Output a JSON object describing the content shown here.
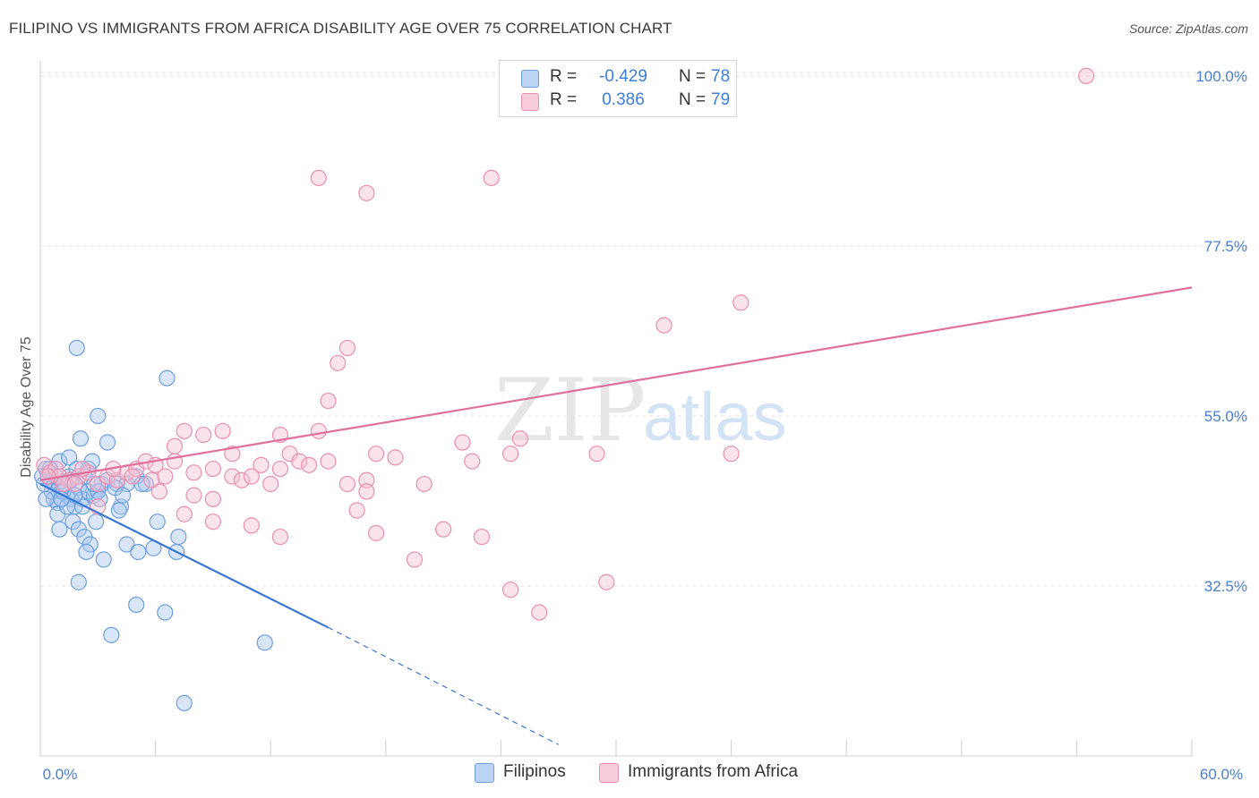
{
  "chart_data": {
    "type": "scatter",
    "title": "FILIPINO VS IMMIGRANTS FROM AFRICA DISABILITY AGE OVER 75 CORRELATION CHART",
    "source": "Source: ZipAtlas.com",
    "ylabel": "Disability Age Over 75",
    "xlabel": "",
    "xlim": [
      0,
      60
    ],
    "ylim": [
      10,
      102
    ],
    "x_tick_labels": [
      "0.0%",
      "60.0%"
    ],
    "y_ticks": [
      32.5,
      55.0,
      77.5,
      100.0
    ],
    "y_tick_labels": [
      "32.5%",
      "55.0%",
      "77.5%",
      "100.0%"
    ],
    "watermark": {
      "zip": "ZIP",
      "atlas": "atlas"
    },
    "legend_stats": [
      {
        "r_label": "R =",
        "r_value": "-0.429",
        "n_label": "N =",
        "n_value": "78"
      },
      {
        "r_label": "R =",
        "r_value": "0.386",
        "n_label": "N =",
        "n_value": "79"
      }
    ],
    "series": [
      {
        "name": "Filipinos",
        "color": "#6d9fe0",
        "fill": "#a9c7f0",
        "line_color": "#3a78d4",
        "trend": {
          "x0": 0.0,
          "y0": 46.0,
          "x1": 15.0,
          "y1": 27.0,
          "dash_x1": 27.0,
          "dash_y1": 11.5
        },
        "points": [
          [
            0.3,
            48
          ],
          [
            0.5,
            47.5
          ],
          [
            0.6,
            46.5
          ],
          [
            0.8,
            46
          ],
          [
            1.0,
            45.5
          ],
          [
            1.2,
            45
          ],
          [
            1.4,
            44.5
          ],
          [
            1.5,
            47
          ],
          [
            0.7,
            44
          ],
          [
            0.9,
            43.5
          ],
          [
            1.1,
            45
          ],
          [
            1.3,
            46
          ],
          [
            1.6,
            44
          ],
          [
            1.8,
            43
          ],
          [
            2.0,
            45.5
          ],
          [
            2.2,
            44
          ],
          [
            2.5,
            45
          ],
          [
            2.8,
            44.5
          ],
          [
            3.0,
            45
          ],
          [
            3.2,
            46
          ],
          [
            3.5,
            46.5
          ],
          [
            4.0,
            46
          ],
          [
            4.5,
            46
          ],
          [
            5.0,
            47
          ],
          [
            5.5,
            46
          ],
          [
            1.0,
            49
          ],
          [
            1.5,
            49.5
          ],
          [
            2.5,
            48
          ],
          [
            2.7,
            49
          ],
          [
            3.5,
            51.5
          ],
          [
            2.1,
            52
          ],
          [
            3.0,
            55
          ],
          [
            0.4,
            47
          ],
          [
            0.6,
            45
          ],
          [
            0.9,
            42
          ],
          [
            1.4,
            43
          ],
          [
            1.7,
            41
          ],
          [
            2.0,
            40
          ],
          [
            2.3,
            39
          ],
          [
            2.6,
            38
          ],
          [
            1.0,
            40
          ],
          [
            1.2,
            45
          ],
          [
            2.9,
            41
          ],
          [
            4.2,
            43
          ],
          [
            6.1,
            41
          ],
          [
            7.2,
            39
          ],
          [
            4.5,
            38
          ],
          [
            5.1,
            37
          ],
          [
            5.9,
            37.5
          ],
          [
            7.1,
            37
          ],
          [
            2.4,
            37
          ],
          [
            3.3,
            36
          ],
          [
            2.0,
            33
          ],
          [
            5.0,
            30
          ],
          [
            6.5,
            29
          ],
          [
            3.7,
            26
          ],
          [
            11.7,
            25
          ],
          [
            7.5,
            17
          ],
          [
            1.9,
            64
          ],
          [
            6.6,
            60
          ],
          [
            0.5,
            48
          ],
          [
            0.8,
            47
          ],
          [
            1.9,
            48
          ],
          [
            2.3,
            47
          ],
          [
            3.0,
            45
          ],
          [
            3.9,
            45.5
          ],
          [
            0.2,
            46
          ],
          [
            1.6,
            46.5
          ],
          [
            2.8,
            46
          ],
          [
            4.3,
            44.5
          ],
          [
            1.1,
            44
          ],
          [
            2.2,
            43
          ],
          [
            3.1,
            44
          ],
          [
            0.3,
            44
          ],
          [
            4.1,
            42.5
          ],
          [
            5.3,
            46
          ],
          [
            0.1,
            47
          ],
          [
            1.8,
            44.5
          ]
        ]
      },
      {
        "name": "Immigrants from Africa",
        "color": "#ea8fb0",
        "fill": "#f6c0d3",
        "line_color": "#e0709a",
        "trend": {
          "x0": 0.0,
          "y0": 46.5,
          "x1": 60.0,
          "y1": 72.0
        },
        "points": [
          [
            0.2,
            48.5
          ],
          [
            0.5,
            47.5
          ],
          [
            0.8,
            48
          ],
          [
            1.0,
            47
          ],
          [
            1.5,
            46.5
          ],
          [
            2.0,
            47
          ],
          [
            2.5,
            47.5
          ],
          [
            3.0,
            46
          ],
          [
            3.5,
            47
          ],
          [
            4.0,
            46.5
          ],
          [
            4.5,
            47.5
          ],
          [
            5.0,
            48
          ],
          [
            5.5,
            49
          ],
          [
            6.0,
            48.5
          ],
          [
            6.5,
            47
          ],
          [
            7.0,
            49
          ],
          [
            8.0,
            47.5
          ],
          [
            9.0,
            48
          ],
          [
            10.0,
            47
          ],
          [
            10.5,
            46.5
          ],
          [
            11.0,
            47
          ],
          [
            11.5,
            48.5
          ],
          [
            12.0,
            46
          ],
          [
            12.5,
            48
          ],
          [
            13.0,
            50
          ],
          [
            13.5,
            49
          ],
          [
            14.0,
            48.5
          ],
          [
            15.0,
            49
          ],
          [
            16.0,
            46
          ],
          [
            17.0,
            46.5
          ],
          [
            17.5,
            50
          ],
          [
            18.5,
            49.5
          ],
          [
            20.0,
            46
          ],
          [
            22.0,
            51.5
          ],
          [
            22.5,
            49
          ],
          [
            24.5,
            50
          ],
          [
            25.0,
            52
          ],
          [
            29.0,
            50
          ],
          [
            36.0,
            50
          ],
          [
            7.5,
            53
          ],
          [
            9.5,
            53
          ],
          [
            10.0,
            50
          ],
          [
            7.0,
            51
          ],
          [
            8.5,
            52.5
          ],
          [
            12.5,
            52.5
          ],
          [
            14.5,
            53
          ],
          [
            15.0,
            57
          ],
          [
            15.5,
            62
          ],
          [
            16.0,
            64
          ],
          [
            17.0,
            45
          ],
          [
            8.0,
            44.5
          ],
          [
            9.0,
            44
          ],
          [
            3.0,
            43
          ],
          [
            7.5,
            42
          ],
          [
            9.0,
            41
          ],
          [
            11.0,
            40.5
          ],
          [
            12.5,
            39
          ],
          [
            16.5,
            42.5
          ],
          [
            17.5,
            39.5
          ],
          [
            21.0,
            40
          ],
          [
            23.0,
            39
          ],
          [
            19.5,
            36
          ],
          [
            24.5,
            32
          ],
          [
            26.0,
            29
          ],
          [
            29.5,
            33
          ],
          [
            14.5,
            86.5
          ],
          [
            17.0,
            84.5
          ],
          [
            23.5,
            86.5
          ],
          [
            32.5,
            67
          ],
          [
            36.5,
            70
          ],
          [
            54.5,
            100
          ],
          [
            1.2,
            46
          ],
          [
            2.2,
            48
          ],
          [
            3.8,
            48
          ],
          [
            4.8,
            47
          ],
          [
            6.2,
            45
          ],
          [
            5.8,
            46.5
          ],
          [
            0.4,
            47
          ],
          [
            1.8,
            46
          ]
        ]
      }
    ]
  }
}
